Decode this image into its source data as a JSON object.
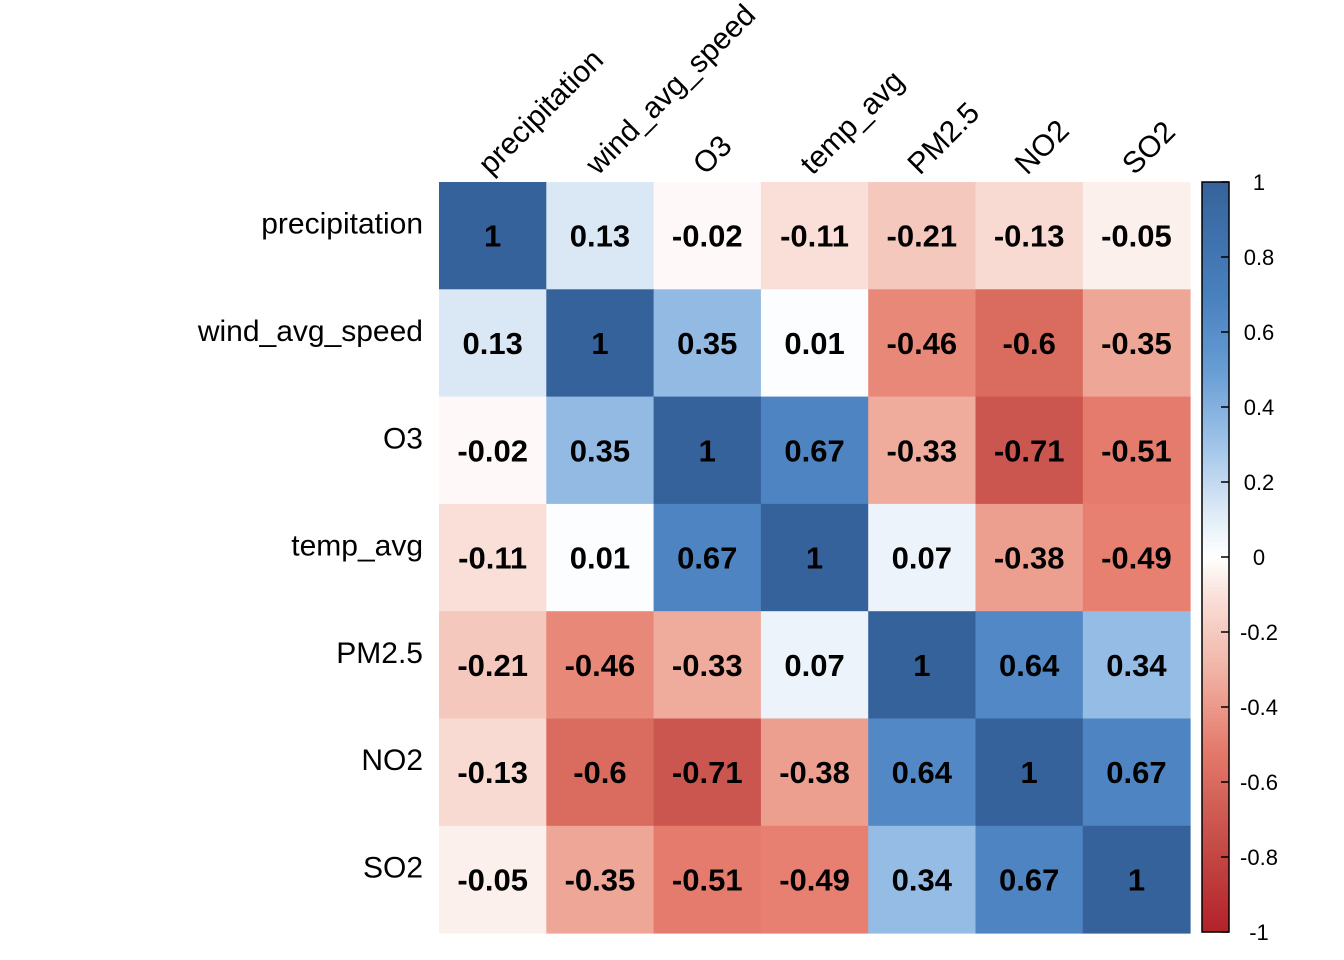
{
  "chart_data": {
    "type": "heatmap",
    "variables": [
      "precipitation",
      "wind_avg_speed",
      "O3",
      "temp_avg",
      "PM2.5",
      "NO2",
      "SO2"
    ],
    "values": [
      [
        1,
        0.13,
        -0.02,
        -0.11,
        -0.21,
        -0.13,
        -0.05
      ],
      [
        0.13,
        1,
        0.35,
        0.01,
        -0.46,
        -0.6,
        -0.35
      ],
      [
        -0.02,
        0.35,
        1,
        0.67,
        -0.33,
        -0.71,
        -0.51
      ],
      [
        -0.11,
        0.01,
        0.67,
        1,
        0.07,
        -0.38,
        -0.49
      ],
      [
        -0.21,
        -0.46,
        -0.33,
        0.07,
        1,
        0.64,
        0.34
      ],
      [
        -0.13,
        -0.6,
        -0.71,
        -0.38,
        0.64,
        1,
        0.67
      ],
      [
        -0.05,
        -0.35,
        -0.51,
        -0.49,
        0.34,
        0.67,
        1
      ]
    ],
    "colorbar": {
      "range": [
        -1,
        1
      ],
      "ticks": [
        1,
        0.8,
        0.6,
        0.4,
        0.2,
        0,
        -0.2,
        -0.4,
        -0.6,
        -0.8,
        -1
      ],
      "tick_labels": [
        "1",
        "0.8",
        "0.6",
        "0.4",
        "0.2",
        "0",
        "-0.2",
        "-0.4",
        "-0.6",
        "-0.8",
        "-1"
      ]
    },
    "colors": {
      "negative": "#B2182B",
      "neutral": "#FFFFFF",
      "positive": "#2166AC"
    },
    "title": "",
    "xlabel": "",
    "ylabel": ""
  }
}
